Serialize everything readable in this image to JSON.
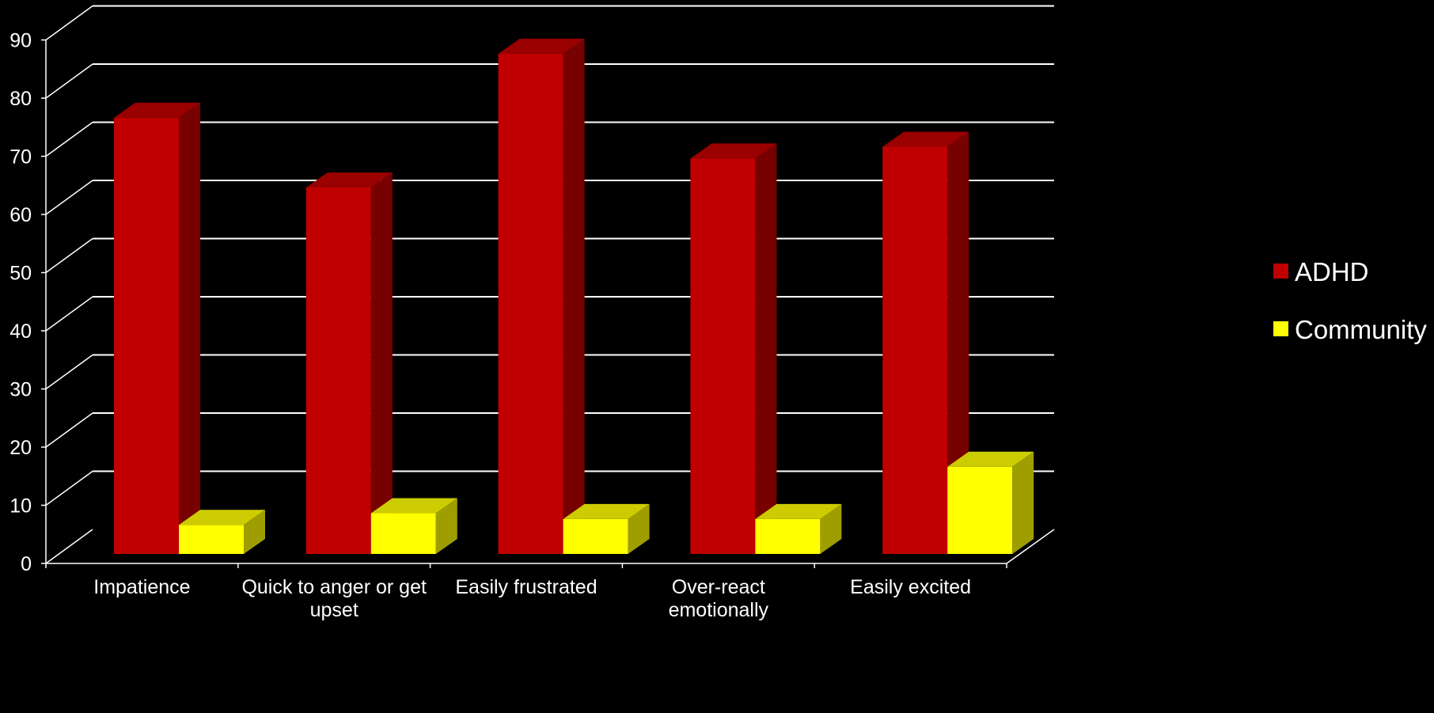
{
  "chart_data": {
    "type": "bar",
    "title": "",
    "xlabel": "",
    "ylabel": "",
    "categories": [
      [
        "Impatience"
      ],
      [
        "Quick to anger or get",
        "upset"
      ],
      [
        "Easily frustrated"
      ],
      [
        "Over-react",
        "emotionally"
      ],
      [
        "Easily excited"
      ]
    ],
    "series": [
      {
        "name": "ADHD",
        "values": [
          75,
          63,
          86,
          68,
          70
        ],
        "color": "#c00000"
      },
      {
        "name": "Community",
        "values": [
          5,
          7,
          6,
          6,
          15
        ],
        "color": "#ffff00"
      }
    ],
    "yticks": [
      "0",
      "10",
      "20",
      "30",
      "40",
      "50",
      "60",
      "70",
      "80",
      "90"
    ],
    "ylim": [
      0,
      90
    ],
    "grid": true,
    "legend_position": "right"
  }
}
